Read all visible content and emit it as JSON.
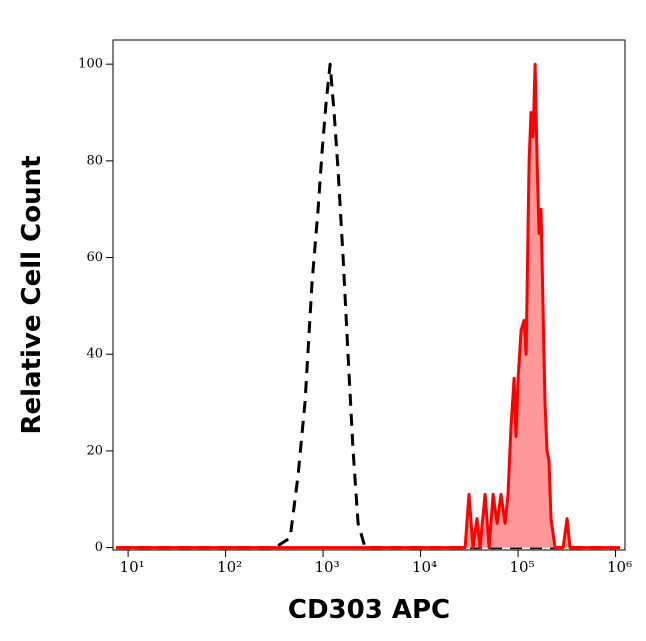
{
  "chart_data": {
    "type": "histogram",
    "xlabel": "CD303 APC",
    "ylabel": "Relative Cell Count",
    "xscale": "log",
    "xlim": [
      7,
      1250000
    ],
    "ylim": [
      -0.5,
      105
    ],
    "xticks": [
      {
        "value": 10,
        "label": "10¹"
      },
      {
        "value": 100,
        "label": "10²"
      },
      {
        "value": 1000,
        "label": "10³"
      },
      {
        "value": 10000,
        "label": "10⁴"
      },
      {
        "value": 100000,
        "label": "10⁵"
      },
      {
        "value": 1000000,
        "label": "10⁶"
      }
    ],
    "yticks": [
      0,
      20,
      40,
      60,
      80,
      100
    ],
    "series": [
      {
        "color": "#000000",
        "dashed": true,
        "x": [
          8,
          322,
          459,
          554,
          653,
          771,
          889,
          977,
          1074,
          1180,
          1297,
          1425,
          1604,
          1803,
          2030,
          2285,
          2698,
          1000000
        ],
        "values": [
          0,
          0,
          2,
          15,
          30,
          55,
          70,
          82,
          92,
          100,
          90,
          78,
          60,
          40,
          20,
          5,
          0,
          0
        ]
      },
      {
        "color": "#ff0000",
        "fill": "#ff9999",
        "x": [
          7.5,
          28600,
          31400,
          34500,
          37900,
          40700,
          45900,
          50400,
          55400,
          60900,
          66900,
          73600,
          78900,
          84700,
          91000,
          95300,
          100000,
          107400,
          115300,
          120800,
          129700,
          135900,
          142500,
          149400,
          156600,
          164100,
          172100,
          180300,
          189100,
          198200,
          207800,
          217800,
          239500,
          289500,
          318100,
          341300,
          1112000
        ],
        "values": [
          0,
          0,
          11,
          0,
          6,
          0,
          11,
          0,
          11,
          5,
          11,
          5,
          11,
          25,
          35,
          23,
          35,
          45,
          47,
          40,
          80,
          90,
          85,
          100,
          80,
          65,
          70,
          50,
          30,
          20,
          18,
          6,
          0,
          0,
          6,
          0,
          0
        ]
      }
    ]
  }
}
